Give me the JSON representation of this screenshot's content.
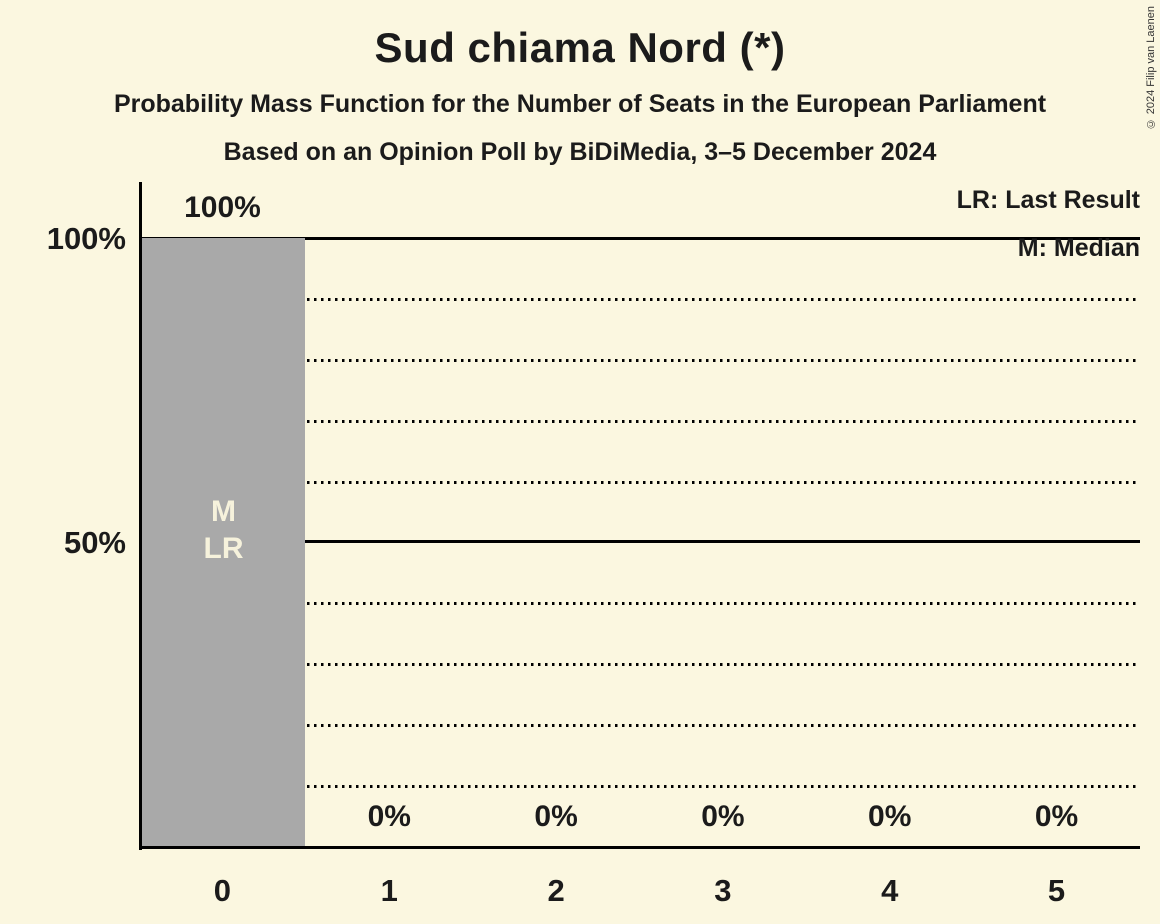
{
  "header": {
    "title": "Sud chiama Nord (*)",
    "subtitle": "Probability Mass Function for the Number of Seats in the European Parliament",
    "poll_line": "Based on an Opinion Poll by BiDiMedia, 3–5 December 2024"
  },
  "copyright": "© 2024 Filip van Laenen",
  "legend": {
    "last_result": "LR: Last Result",
    "median": "M: Median"
  },
  "y_axis": {
    "tick_100": "100%",
    "tick_50": "50%"
  },
  "bar_annotation": {
    "median": "M",
    "last_result": "LR"
  },
  "chart_data": {
    "type": "bar",
    "title": "Sud chiama Nord (*)",
    "categories": [
      "0",
      "1",
      "2",
      "3",
      "4",
      "5"
    ],
    "values": [
      100,
      0,
      0,
      0,
      0,
      0
    ],
    "value_labels": [
      "100%",
      "0%",
      "0%",
      "0%",
      "0%",
      "0%"
    ],
    "xlabel": "",
    "ylabel": "",
    "ylim": [
      0,
      100
    ],
    "y_solid_gridlines": [
      50,
      100
    ],
    "y_dotted_gridlines": [
      10,
      20,
      30,
      40,
      60,
      70,
      80,
      90
    ],
    "grid": true,
    "legend_position": "top-right",
    "median_category": "0",
    "last_result_category": "0",
    "bar_color": "#A9A9A9",
    "background_color": "#FBF7E0",
    "bar_label_color": "#F6F2DC",
    "text_color": "#1B1B1B"
  }
}
